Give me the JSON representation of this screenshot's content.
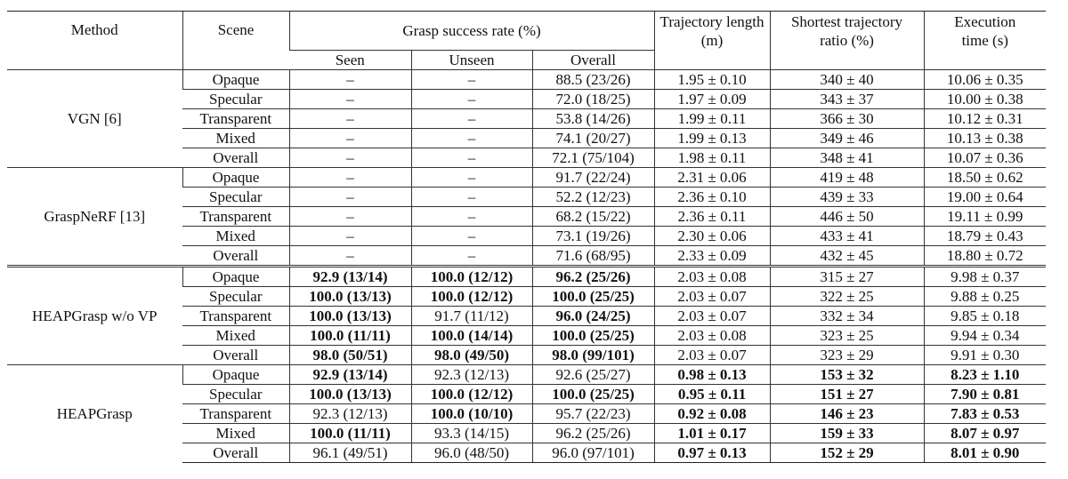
{
  "header": {
    "method": "Method",
    "scene": "Scene",
    "grasp_success_rate": "Grasp success rate (%)",
    "seen": "Seen",
    "unseen": "Unseen",
    "overall": "Overall",
    "trajectory_length": "Trajectory length (m)",
    "shortest_trajectory_ratio": "Shortest trajectory ratio (%)",
    "execution_time": "Execution time (s)"
  },
  "table": {
    "groups": [
      {
        "method": "VGN [6]",
        "rows": [
          [
            "Opaque",
            "–",
            "–",
            "88.5 (23/26)",
            "1.95 ± 0.10",
            "340 ± 40",
            "10.06 ± 0.35"
          ],
          [
            "Specular",
            "–",
            "–",
            "72.0 (18/25)",
            "1.97 ± 0.09",
            "343 ± 37",
            "10.00 ± 0.38"
          ],
          [
            "Transparent",
            "–",
            "–",
            "53.8 (14/26)",
            "1.99 ± 0.11",
            "366 ± 30",
            "10.12 ± 0.31"
          ],
          [
            "Mixed",
            "–",
            "–",
            "74.1 (20/27)",
            "1.99 ± 0.13",
            "349 ± 46",
            "10.13 ± 0.38"
          ],
          [
            "Overall",
            "–",
            "–",
            "72.1 (75/104)",
            "1.98 ± 0.11",
            "348 ± 41",
            "10.07 ± 0.36"
          ]
        ]
      },
      {
        "method": "GraspNeRF [13]",
        "rows": [
          [
            "Opaque",
            "–",
            "–",
            "91.7 (22/24)",
            "2.31 ± 0.06",
            "419 ± 48",
            "18.50 ± 0.62"
          ],
          [
            "Specular",
            "–",
            "–",
            "52.2 (12/23)",
            "2.36 ± 0.10",
            "439 ± 33",
            "19.00 ± 0.64"
          ],
          [
            "Transparent",
            "–",
            "–",
            "68.2 (15/22)",
            "2.36 ± 0.11",
            "446 ± 50",
            "19.11 ± 0.99"
          ],
          [
            "Mixed",
            "–",
            "–",
            "73.1 (19/26)",
            "2.30 ± 0.06",
            "433 ± 41",
            "18.79 ± 0.43"
          ],
          [
            "Overall",
            "–",
            "–",
            "71.6 (68/95)",
            "2.33 ± 0.09",
            "432 ± 45",
            "18.80 ± 0.72"
          ]
        ]
      },
      {
        "method": "HEAPGrasp w/o VP",
        "rows": [
          [
            "Opaque",
            "92.9 (13/14)",
            "100.0 (12/12)",
            "96.2 (25/26)",
            "2.03 ± 0.08",
            "315 ± 27",
            "9.98 ± 0.37"
          ],
          [
            "Specular",
            "100.0 (13/13)",
            "100.0 (12/12)",
            "100.0 (25/25)",
            "2.03 ± 0.07",
            "322 ± 25",
            "9.88 ± 0.25"
          ],
          [
            "Transparent",
            "100.0 (13/13)",
            "91.7 (11/12)",
            "96.0 (24/25)",
            "2.03 ± 0.07",
            "332 ± 34",
            "9.85 ± 0.18"
          ],
          [
            "Mixed",
            "100.0 (11/11)",
            "100.0 (14/14)",
            "100.0 (25/25)",
            "2.03 ± 0.08",
            "323 ± 25",
            "9.94 ± 0.34"
          ],
          [
            "Overall",
            "98.0 (50/51)",
            "98.0 (49/50)",
            "98.0 (99/101)",
            "2.03 ± 0.07",
            "323 ± 29",
            "9.91 ± 0.30"
          ]
        ]
      },
      {
        "method": "HEAPGrasp",
        "rows": [
          [
            "Opaque",
            "92.9 (13/14)",
            "92.3 (12/13)",
            "92.6 (25/27)",
            "0.98 ± 0.13",
            "153 ± 32",
            "8.23 ± 1.10"
          ],
          [
            "Specular",
            "100.0 (13/13)",
            "100.0 (12/12)",
            "100.0 (25/25)",
            "0.95 ± 0.11",
            "151 ± 27",
            "7.90 ± 0.81"
          ],
          [
            "Transparent",
            "92.3 (12/13)",
            "100.0 (10/10)",
            "95.7 (22/23)",
            "0.92 ± 0.08",
            "146 ± 23",
            "7.83 ± 0.53"
          ],
          [
            "Mixed",
            "100.0 (11/11)",
            "93.3 (14/15)",
            "96.2 (25/26)",
            "1.01 ± 0.17",
            "159 ± 33",
            "8.07 ± 0.97"
          ],
          [
            "Overall",
            "96.1 (49/51)",
            "96.0 (48/50)",
            "96.0 (97/101)",
            "0.97 ± 0.13",
            "152 ± 29",
            "8.01 ± 0.90"
          ]
        ]
      }
    ]
  }
}
